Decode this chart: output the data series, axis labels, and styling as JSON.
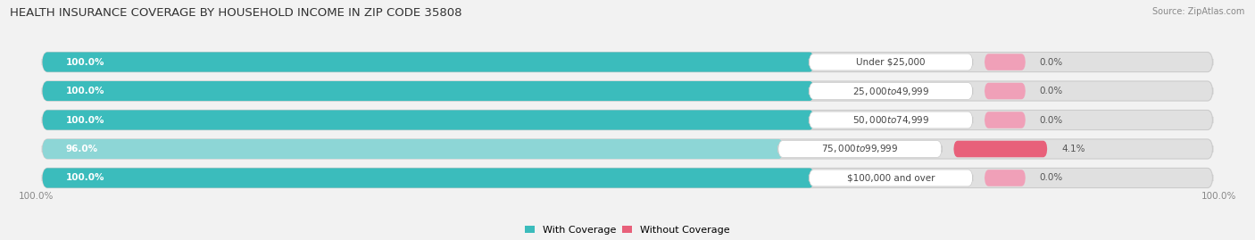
{
  "title": "HEALTH INSURANCE COVERAGE BY HOUSEHOLD INCOME IN ZIP CODE 35808",
  "source": "Source: ZipAtlas.com",
  "categories": [
    "Under $25,000",
    "$25,000 to $49,999",
    "$50,000 to $74,999",
    "$75,000 to $99,999",
    "$100,000 and over"
  ],
  "with_coverage": [
    100.0,
    100.0,
    100.0,
    96.0,
    100.0
  ],
  "without_coverage": [
    0.0,
    0.0,
    0.0,
    4.1,
    0.0
  ],
  "color_with_dark": "#3bbcbc",
  "color_with_light": "#8dd6d6",
  "color_without_dark": "#e8607a",
  "color_without_light": "#f0a0b8",
  "bg_color": "#f2f2f2",
  "bar_bg_color": "#e0e0e0",
  "title_fontsize": 9.5,
  "source_fontsize": 7,
  "label_fontsize": 7.5,
  "pct_fontsize": 7.5,
  "legend_fontsize": 8,
  "bar_height": 0.68,
  "legend_label_with": "With Coverage",
  "legend_label_without": "Without Coverage",
  "bottom_left_label": "100.0%",
  "bottom_right_label": "100.0%"
}
